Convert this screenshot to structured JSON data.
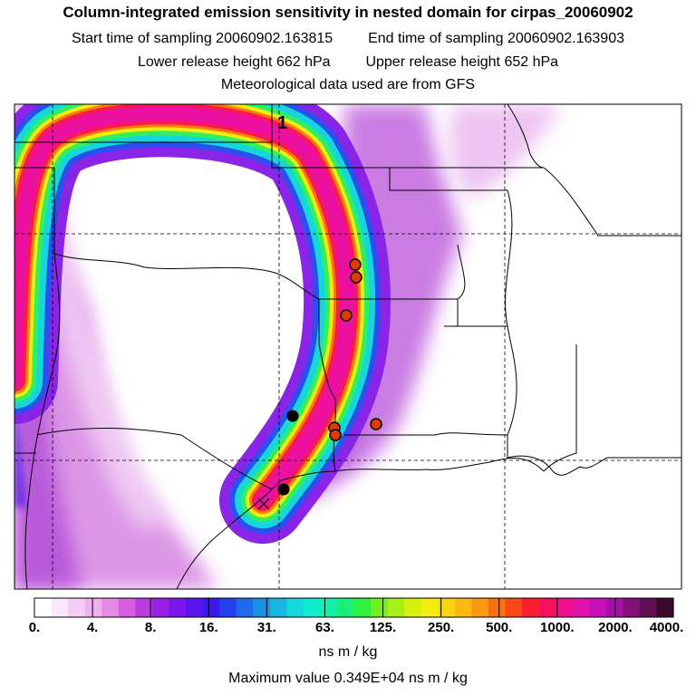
{
  "header": {
    "title": "Column-integrated emission sensitivity in nested domain for cirpas_20060902",
    "start_label": "Start time of sampling",
    "start_value": "20060902.163815",
    "end_label": "End time of sampling",
    "end_value": "20060902.163903",
    "lower_label": "Lower release height",
    "lower_value": "662 hPa",
    "upper_label": "Upper release height",
    "upper_value": "652 hPa",
    "met_line": "Meteorological data used are from GFS"
  },
  "map": {
    "marker_label": "1",
    "receptor_symbol": "release-point"
  },
  "colorbar": {
    "tick_labels": [
      "0.",
      "4.",
      "8.",
      "16.",
      "31.",
      "63.",
      "125.",
      "250.",
      "500.",
      "1000.",
      "2000.",
      "4000."
    ],
    "colors": [
      "#ffffff",
      "#fbe6fb",
      "#f5ccf5",
      "#eeb0ef",
      "#e68ae8",
      "#d45de0",
      "#b93cdc",
      "#9a22e6",
      "#7a18ec",
      "#5a14ee",
      "#3a18f0",
      "#2440ee",
      "#1e6ae8",
      "#1a92e4",
      "#18b6e0",
      "#14d8dc",
      "#10ecd0",
      "#10f0a8",
      "#18f078",
      "#30f040",
      "#70f020",
      "#a8f018",
      "#d6f010",
      "#f6ec10",
      "#fad410",
      "#fab810",
      "#fa9810",
      "#fa7010",
      "#fa4818",
      "#fa2030",
      "#f81060",
      "#f0108c",
      "#e010a8",
      "#c810b8",
      "#a610a8",
      "#84107c",
      "#601050",
      "#3a0a2c"
    ],
    "unit": "ns m / kg",
    "max_label": "Maximum value",
    "max_value": "0.349E+04 ns m / kg"
  },
  "colors": {
    "receptor_fill": "#e03a00",
    "receptor_ring": "#000000",
    "black_dot": "#000000"
  }
}
